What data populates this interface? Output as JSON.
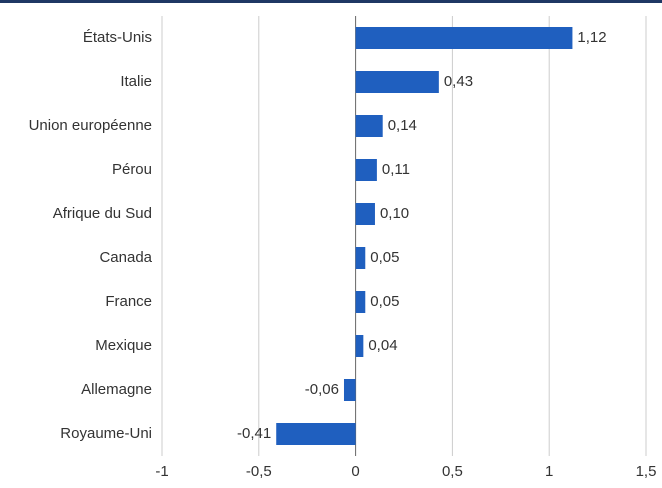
{
  "chart_data": {
    "type": "bar",
    "orientation": "horizontal",
    "categories": [
      "États-Unis",
      "Italie",
      "Union européenne",
      "Pérou",
      "Afrique du Sud",
      "Canada",
      "France",
      "Mexique",
      "Allemagne",
      "Royaume-Uni"
    ],
    "values": [
      1.12,
      0.43,
      0.14,
      0.11,
      0.1,
      0.05,
      0.05,
      0.04,
      -0.06,
      -0.41
    ],
    "value_labels": [
      "1,12",
      "0,43",
      "0,14",
      "0,11",
      "0,10",
      "0,05",
      "0,05",
      "0,04",
      "-0,06",
      "-0,41"
    ],
    "color": "#1f5fbf",
    "xlim": [
      -1,
      1.5
    ],
    "xticks": [
      -1,
      {
        "value": -0.5,
        "label": "-0,5"
      },
      0,
      {
        "value": 0.5,
        "label": "0,5"
      },
      1,
      {
        "value": 1.5,
        "label": "1,5"
      }
    ],
    "grid": true
  }
}
